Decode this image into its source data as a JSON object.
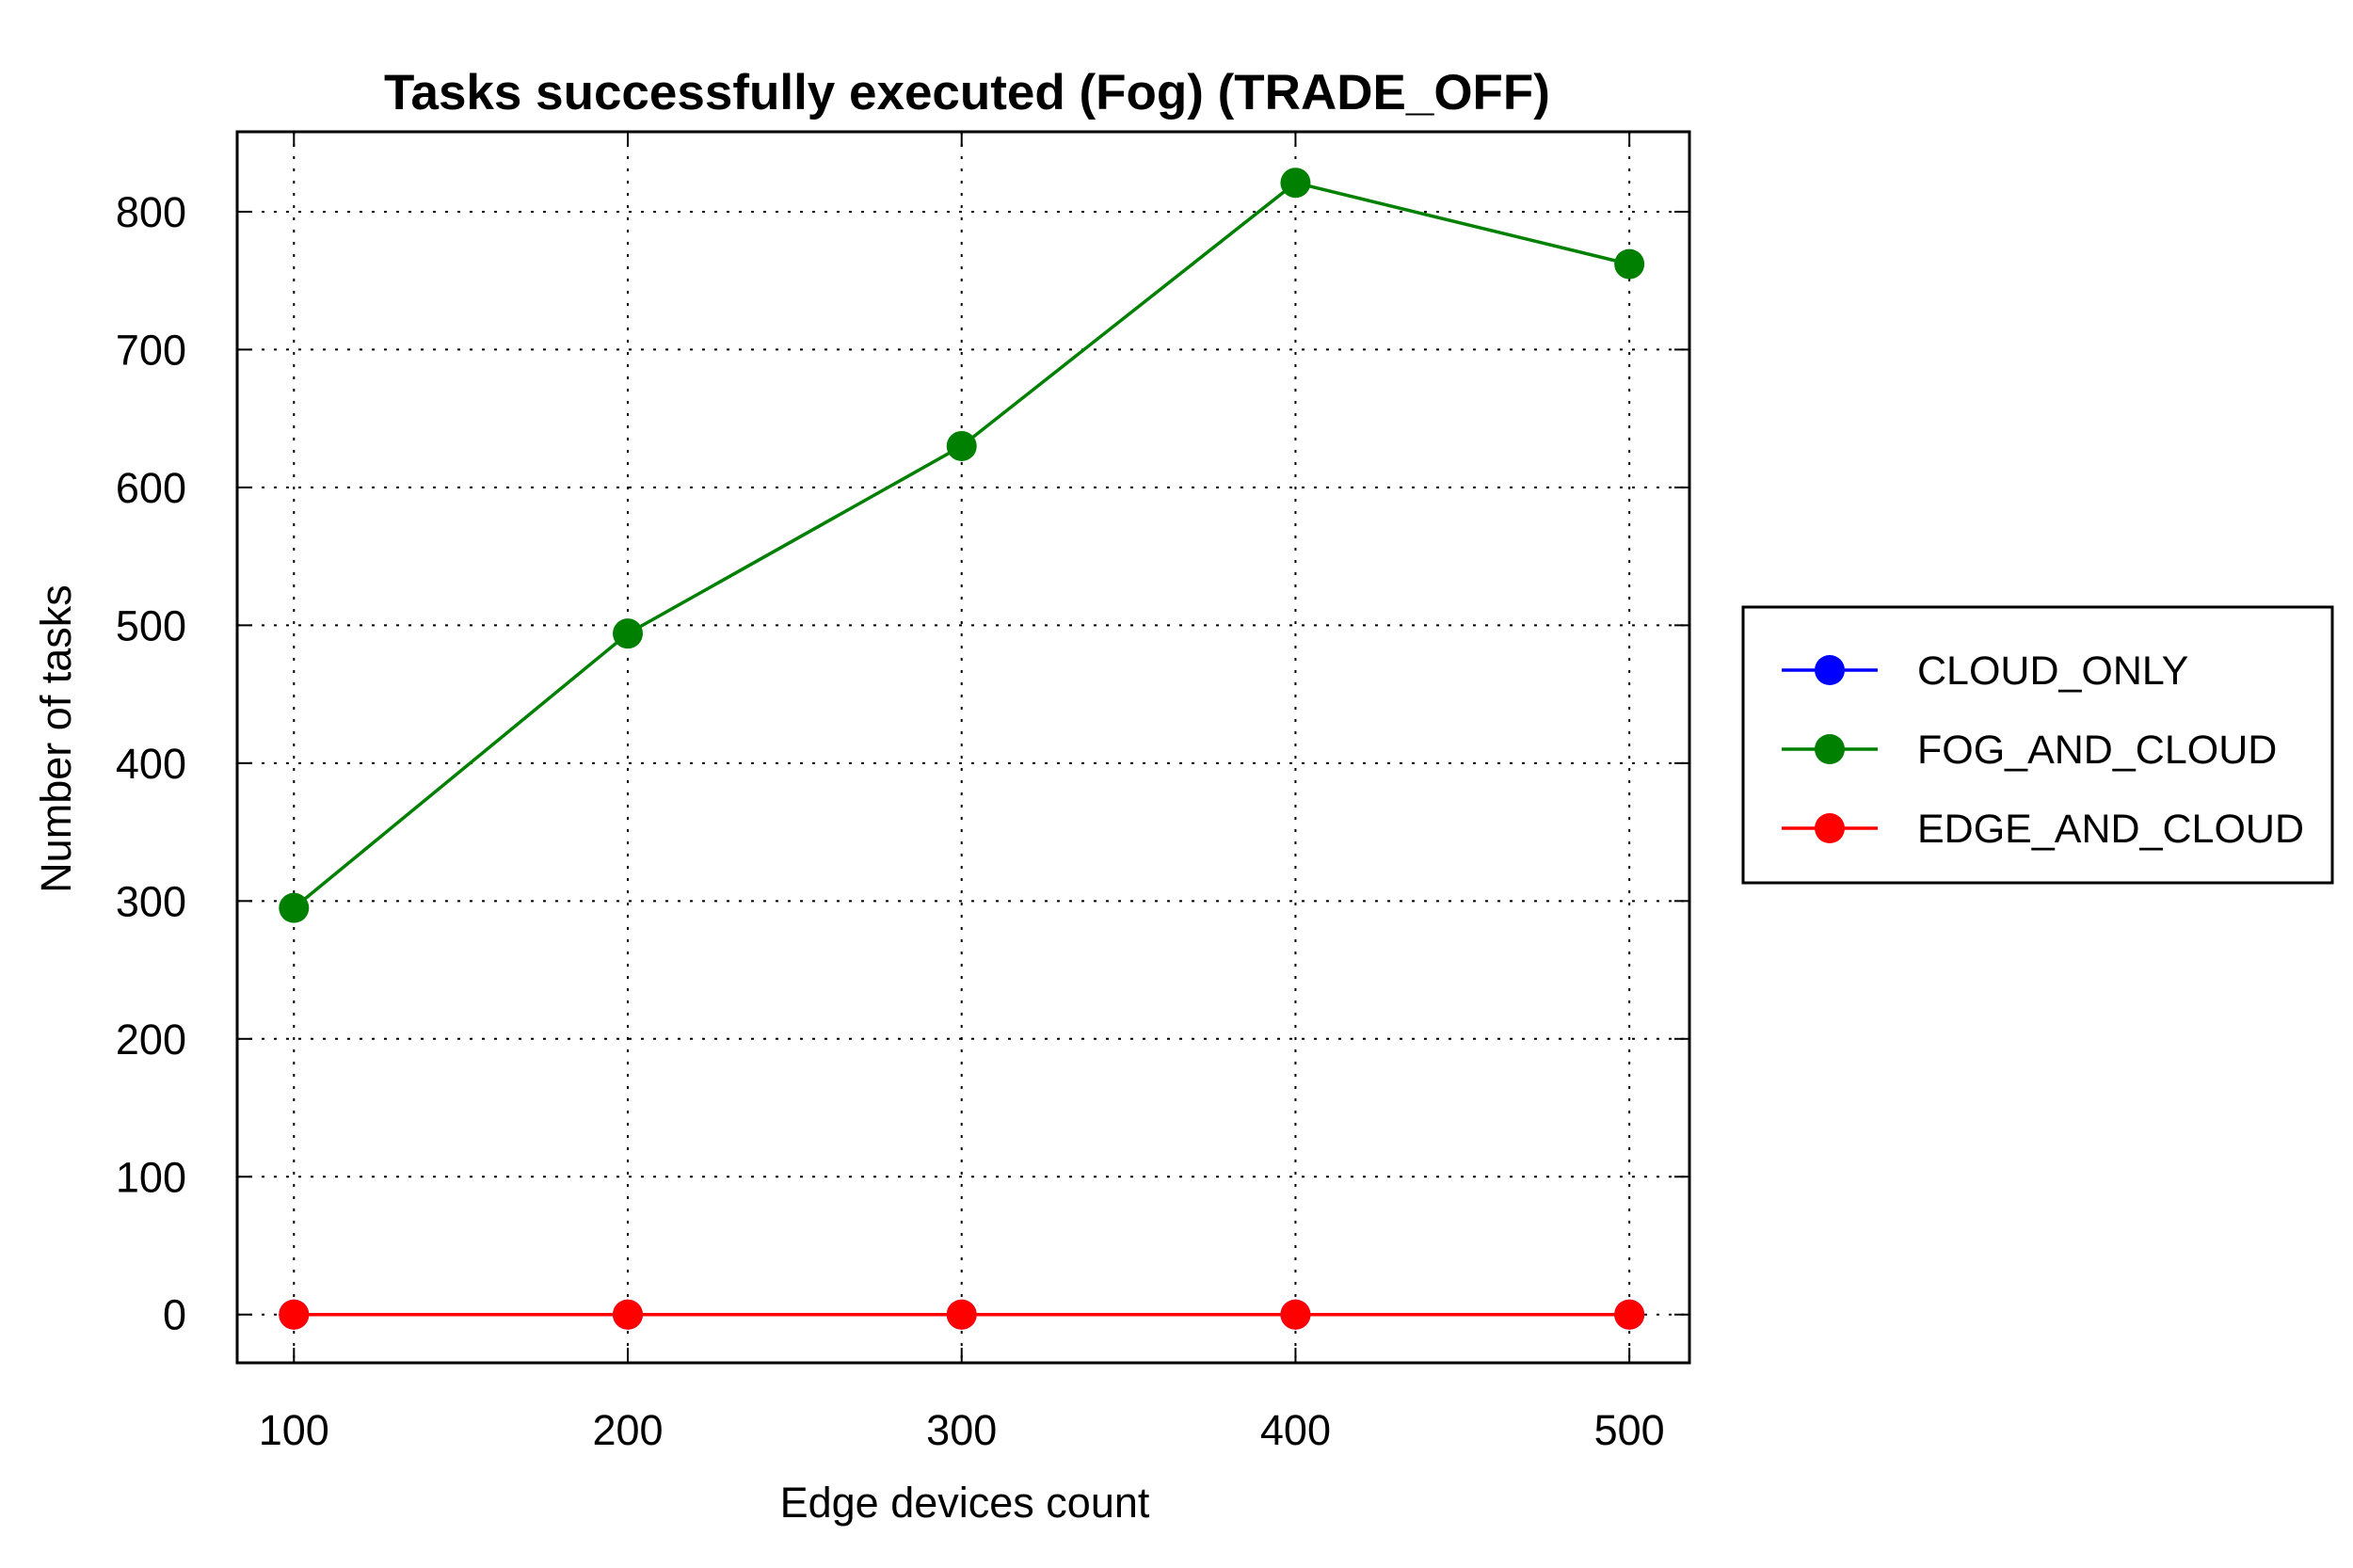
{
  "chart_data": {
    "type": "line",
    "title": "Tasks successfully executed (Fog) (TRADE_OFF)",
    "xlabel": "Edge devices count",
    "ylabel": "Number of tasks",
    "x": [
      100,
      200,
      300,
      400,
      500
    ],
    "x_ticks": [
      "100",
      "200",
      "300",
      "400",
      "500"
    ],
    "y_ticks": [
      "0",
      "100",
      "200",
      "300",
      "400",
      "500",
      "600",
      "700",
      "800"
    ],
    "xlim": [
      83,
      518
    ],
    "ylim": [
      -35,
      858
    ],
    "grid": true,
    "legend_position": "right",
    "series": [
      {
        "name": "CLOUD_ONLY",
        "color": "#0000ff",
        "values": [
          0,
          0,
          0,
          0,
          0
        ]
      },
      {
        "name": "FOG_AND_CLOUD",
        "color": "#008000",
        "values": [
          295,
          494,
          630,
          821,
          762
        ]
      },
      {
        "name": "EDGE_AND_CLOUD",
        "color": "#ff0000",
        "values": [
          0,
          0,
          0,
          0,
          0
        ]
      }
    ]
  }
}
